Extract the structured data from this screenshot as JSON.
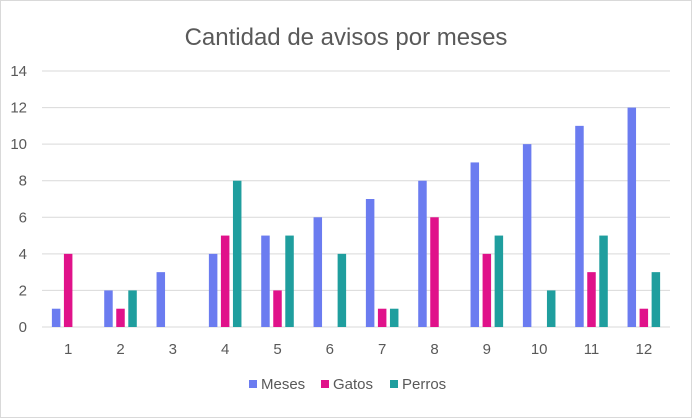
{
  "chart_data": {
    "type": "bar",
    "title": "Cantidad de avisos por meses",
    "categories": [
      "1",
      "2",
      "3",
      "4",
      "5",
      "6",
      "7",
      "8",
      "9",
      "10",
      "11",
      "12"
    ],
    "series": [
      {
        "name": "Meses",
        "color": "#6b7cf0",
        "values": [
          1,
          2,
          3,
          4,
          5,
          6,
          7,
          8,
          9,
          10,
          11,
          12
        ]
      },
      {
        "name": "Gatos",
        "color": "#e0128a",
        "values": [
          4,
          1,
          0,
          5,
          2,
          0,
          1,
          6,
          4,
          0,
          3,
          1
        ]
      },
      {
        "name": "Perros",
        "color": "#1f9e9e",
        "values": [
          0,
          2,
          0,
          8,
          5,
          4,
          1,
          0,
          5,
          2,
          5,
          3
        ]
      }
    ],
    "yticks": [
      "0",
      "2",
      "4",
      "6",
      "8",
      "10",
      "12",
      "14"
    ],
    "ylim": [
      0,
      14
    ],
    "grid": true,
    "legend": "bottom",
    "gridline_color": "#d9d9d9"
  }
}
